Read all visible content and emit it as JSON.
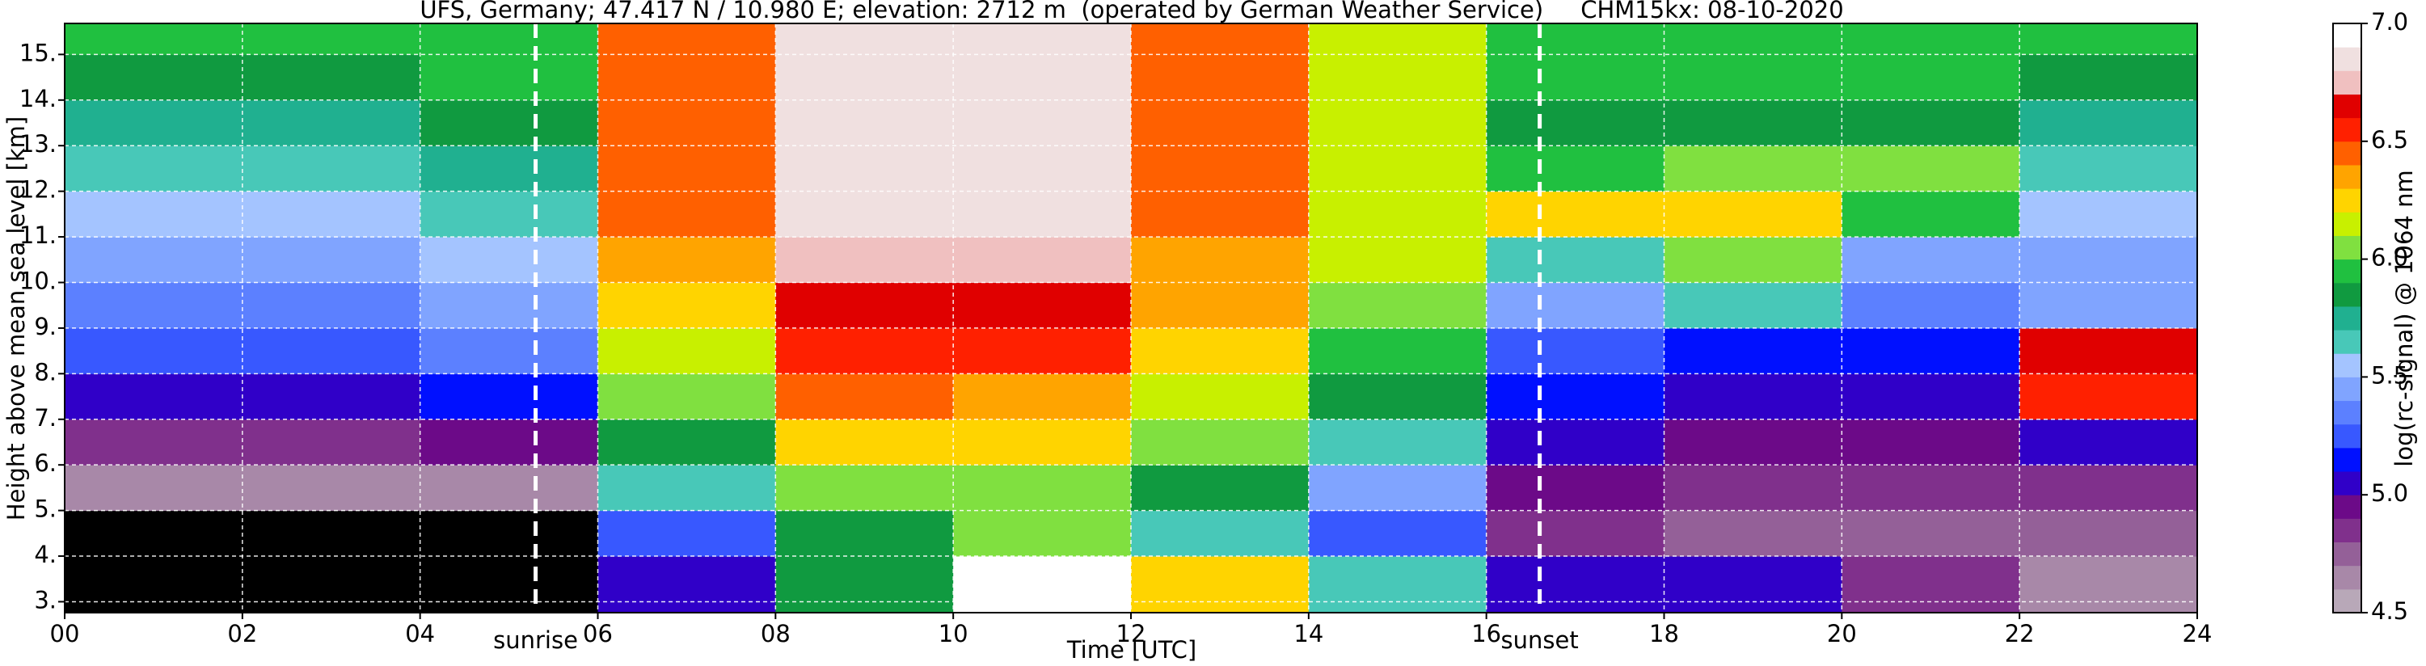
{
  "chart_data": {
    "type": "heatmap",
    "title": "UFS, Germany; 47.417 N / 10.980 E; elevation: 2712 m  (operated by German Weather Service)     CHM15kx: 08-10-2020",
    "xlabel": "Time [UTC]",
    "ylabel": "Height above mean sea level [km]",
    "xlim": [
      0,
      24
    ],
    "ylim": [
      2.76,
      15.68
    ],
    "xticks": [
      {
        "value": 0,
        "label": "00"
      },
      {
        "value": 2,
        "label": "02"
      },
      {
        "value": 4,
        "label": "04"
      },
      {
        "value": 6,
        "label": "06"
      },
      {
        "value": 8,
        "label": "08"
      },
      {
        "value": 10,
        "label": "10"
      },
      {
        "value": 12,
        "label": "12"
      },
      {
        "value": 14,
        "label": "14"
      },
      {
        "value": 16,
        "label": "16"
      },
      {
        "value": 18,
        "label": "18"
      },
      {
        "value": 20,
        "label": "20"
      },
      {
        "value": 22,
        "label": "22"
      },
      {
        "value": 24,
        "label": "24"
      }
    ],
    "yticks": [
      {
        "value": 3,
        "label": "3."
      },
      {
        "value": 4,
        "label": "4."
      },
      {
        "value": 5,
        "label": "5."
      },
      {
        "value": 6,
        "label": "6."
      },
      {
        "value": 7,
        "label": "7."
      },
      {
        "value": 8,
        "label": "8."
      },
      {
        "value": 9,
        "label": "9."
      },
      {
        "value": 10,
        "label": "10."
      },
      {
        "value": 11,
        "label": "11."
      },
      {
        "value": 12,
        "label": "12."
      },
      {
        "value": 13,
        "label": "13."
      },
      {
        "value": 14,
        "label": "14."
      },
      {
        "value": 15,
        "label": "15."
      }
    ],
    "grid": true,
    "x_edges": [
      0,
      2,
      4,
      6,
      8,
      10,
      12,
      14,
      16,
      18,
      20,
      22,
      24
    ],
    "y_edges": [
      2.76,
      4,
      5,
      6,
      7,
      8,
      9,
      10,
      11,
      12,
      13,
      14,
      15,
      15.68
    ],
    "z": [
      [
        4.3,
        4.3,
        4.3,
        5.0,
        5.8,
        6.9,
        6.2,
        5.6,
        5.0,
        5.0,
        4.8,
        4.6
      ],
      [
        4.4,
        4.4,
        4.4,
        5.2,
        5.8,
        6.0,
        5.6,
        5.2,
        4.8,
        4.7,
        4.7,
        4.7
      ],
      [
        4.6,
        4.6,
        4.6,
        5.6,
        6.0,
        6.0,
        5.8,
        5.4,
        4.9,
        4.8,
        4.8,
        4.8
      ],
      [
        4.8,
        4.8,
        4.9,
        5.8,
        6.2,
        6.2,
        6.0,
        5.6,
        5.0,
        4.9,
        4.9,
        5.0
      ],
      [
        5.0,
        5.0,
        5.1,
        6.0,
        6.4,
        6.3,
        6.1,
        5.8,
        5.1,
        5.0,
        5.0,
        6.5
      ],
      [
        5.2,
        5.2,
        5.3,
        6.1,
        6.5,
        6.5,
        6.2,
        5.9,
        5.2,
        5.1,
        5.1,
        6.6
      ],
      [
        5.3,
        5.3,
        5.4,
        6.2,
        6.6,
        6.6,
        6.3,
        6.0,
        5.4,
        5.6,
        5.3,
        5.4
      ],
      [
        5.4,
        5.4,
        5.5,
        6.3,
        6.7,
        6.7,
        6.3,
        6.1,
        5.6,
        6.0,
        5.4,
        5.4
      ],
      [
        5.5,
        5.5,
        5.6,
        6.4,
        6.8,
        6.8,
        6.4,
        6.1,
        6.2,
        6.2,
        5.9,
        5.5
      ],
      [
        5.6,
        5.6,
        5.7,
        6.4,
        6.8,
        6.8,
        6.4,
        6.1,
        5.9,
        6.0,
        6.0,
        5.6
      ],
      [
        5.7,
        5.7,
        5.8,
        6.4,
        6.8,
        6.8,
        6.4,
        6.1,
        5.8,
        5.8,
        5.8,
        5.7
      ],
      [
        5.8,
        5.8,
        5.9,
        6.4,
        6.8,
        6.8,
        6.4,
        6.1,
        5.9,
        5.9,
        5.9,
        5.8
      ],
      [
        5.9,
        5.9,
        5.9,
        6.4,
        6.8,
        6.8,
        6.4,
        6.1,
        5.9,
        5.9,
        5.9,
        5.9
      ]
    ],
    "under_color": "#000000",
    "colorbar": {
      "label": "log(rc-signal) @ 1064 nm",
      "clim": [
        4.5,
        7.0
      ],
      "ticks": [
        {
          "value": 4.5,
          "label": "4.5"
        },
        {
          "value": 5,
          "label": "5.0"
        },
        {
          "value": 5.5,
          "label": "5.5"
        },
        {
          "value": 6,
          "label": "6.0"
        },
        {
          "value": 6.5,
          "label": "6.5"
        },
        {
          "value": 7,
          "label": "7.0"
        }
      ],
      "colors": [
        "#b8a8b8",
        "#a888a8",
        "#946098",
        "#80308c",
        "#6c0a88",
        "#3000c8",
        "#0010ff",
        "#3858ff",
        "#5c80ff",
        "#80a4ff",
        "#a4c4ff",
        "#48c8b8",
        "#20b090",
        "#109a40",
        "#20c040",
        "#80e040",
        "#c8f000",
        "#ffd400",
        "#ffa400",
        "#ff6000",
        "#ff2000",
        "#e00000",
        "#f0c0c0",
        "#f0e0e0",
        "#ffffff"
      ]
    },
    "annotations": [
      {
        "text": "sunrise",
        "x": 5.3
      },
      {
        "text": "sunset",
        "x": 16.6
      }
    ]
  }
}
